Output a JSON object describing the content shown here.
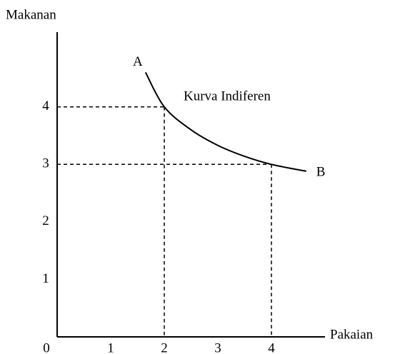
{
  "chart_data": {
    "type": "line",
    "y_label": "Makanan",
    "x_label": "Pakaian",
    "annotation": "Kurva Indiferen",
    "x": [
      1.65,
      2,
      2.5,
      3,
      3.5,
      4,
      4.65
    ],
    "series": [
      {
        "name": "Kurva Indiferen",
        "color": "#000000",
        "values": [
          4.6,
          4,
          3.6,
          3.33,
          3.14,
          3,
          2.88
        ]
      }
    ],
    "point_labels": [
      {
        "label": "A",
        "x": 1.65,
        "y": 4.6
      },
      {
        "label": "B",
        "x": 4.65,
        "y": 2.88
      }
    ],
    "guides": [
      {
        "x": 2,
        "y": 4
      },
      {
        "x": 4,
        "y": 3
      }
    ],
    "xlim": [
      0,
      5
    ],
    "ylim": [
      0,
      5.3
    ],
    "xticks": [
      0,
      1,
      2,
      3,
      4
    ],
    "yticks": [
      1,
      2,
      3,
      4
    ]
  }
}
